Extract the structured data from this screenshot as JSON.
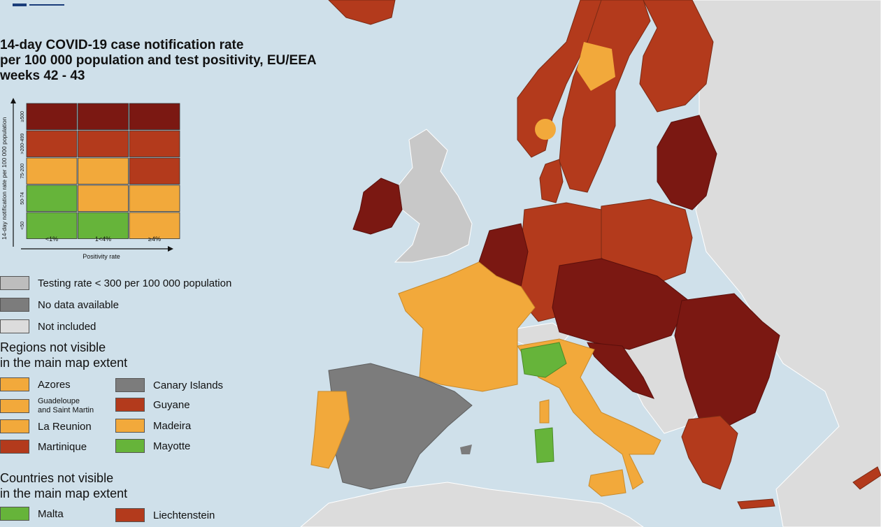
{
  "title": {
    "line1": "14-day COVID-19 case notification rate",
    "line2": "per 100 000 population and test positivity, EU/EEA",
    "line3": "weeks 42 - 43"
  },
  "colors": {
    "sea": "#cfe0ea",
    "dark_red": "#7b1812",
    "red": "#b33a1c",
    "orange": "#f2a93b",
    "green": "#66b43a",
    "light_grey": "#bdbdbd",
    "dark_grey": "#7c7c7c",
    "not_included": "#dcdcdc"
  },
  "matrix": {
    "y_axis_label": "14-day notification rate per 100 000 population",
    "x_axis_label": "Positivity rate",
    "rows": [
      "≥500",
      ">200-499",
      "75-200",
      "50-74",
      "<50"
    ],
    "cols": [
      "<1%",
      "1<4%",
      "≥4%"
    ],
    "cells": [
      [
        "dark_red",
        "dark_red",
        "dark_red"
      ],
      [
        "red",
        "red",
        "red"
      ],
      [
        "orange",
        "orange",
        "red"
      ],
      [
        "green",
        "orange",
        "orange"
      ],
      [
        "green",
        "green",
        "orange"
      ]
    ]
  },
  "legend": {
    "testing_rate": "Testing rate < 300 per 100 000 population",
    "no_data": "No data available",
    "not_included": "Not included"
  },
  "regions": {
    "heading_line1": "Regions not visible",
    "heading_line2": "in the main map extent",
    "left": [
      {
        "label": "Azores",
        "color": "orange"
      },
      {
        "label": "Guadeloupe\nand Saint Martin",
        "color": "orange"
      },
      {
        "label": "La Reunion",
        "color": "orange"
      },
      {
        "label": "Martinique",
        "color": "red"
      }
    ],
    "right": [
      {
        "label": "Canary Islands",
        "color": "dark_grey"
      },
      {
        "label": "Guyane",
        "color": "red"
      },
      {
        "label": "Madeira",
        "color": "orange"
      },
      {
        "label": "Mayotte",
        "color": "green"
      }
    ]
  },
  "countries": {
    "heading_line1": "Countries not visible",
    "heading_line2": "in the main map extent",
    "items": [
      {
        "label": "Malta",
        "color": "green"
      },
      {
        "label": "Liechtenstein",
        "color": "red"
      }
    ]
  }
}
